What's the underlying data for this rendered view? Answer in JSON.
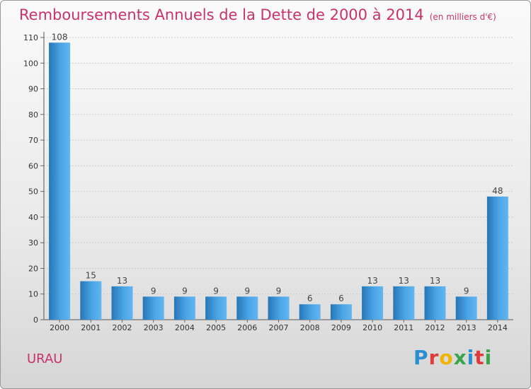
{
  "header": {
    "title": "Remboursements Annuels de la Dette de 2000 à 2014",
    "subtitle": "(en milliers d'€)"
  },
  "footer": {
    "commune": "URAU",
    "logo_letters": [
      "P",
      "r",
      "o",
      "x",
      "i",
      "t",
      "i"
    ],
    "logo_colors": [
      "#2a8fd0",
      "#e03a3a",
      "#f0b400",
      "#3aa64b",
      "#2a8fd0",
      "#e03a3a",
      "#3aa64b"
    ]
  },
  "chart_data": {
    "type": "bar",
    "categories": [
      "2000",
      "2001",
      "2002",
      "2003",
      "2004",
      "2005",
      "2006",
      "2007",
      "2008",
      "2009",
      "2010",
      "2011",
      "2012",
      "2013",
      "2014"
    ],
    "values": [
      108,
      15,
      13,
      9,
      9,
      9,
      9,
      9,
      6,
      6,
      13,
      13,
      13,
      9,
      48
    ],
    "data_labels": [
      "108",
      "15",
      "13",
      "9",
      "9",
      "9",
      "9",
      "9",
      "6",
      "6",
      "13",
      "13",
      "13",
      "9",
      "48"
    ],
    "ylim": [
      0,
      110
    ],
    "yticks": [
      0,
      10,
      20,
      30,
      40,
      50,
      60,
      70,
      80,
      90,
      100,
      110
    ],
    "grid": true,
    "bar_color": "#3a96d8",
    "bar_color_light": "#5fb3ee",
    "bar_color_dark": "#2776b6"
  }
}
